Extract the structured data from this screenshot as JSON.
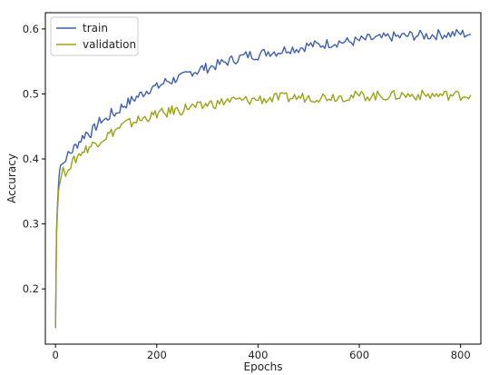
{
  "chart_data": {
    "type": "line",
    "title": "",
    "xlabel": "Epochs",
    "ylabel": "Accuracy",
    "xlim": [
      -20,
      840
    ],
    "ylim": [
      0.115,
      0.625
    ],
    "xticks": [
      0,
      200,
      400,
      600,
      800
    ],
    "yticks": [
      0.2,
      0.3,
      0.4,
      0.5,
      0.6
    ],
    "grid": false,
    "legend_position": "top-left",
    "series": [
      {
        "name": "train",
        "color": "#3e5fb4",
        "x": [
          0,
          2,
          4,
          6,
          8,
          10,
          15,
          20,
          25,
          30,
          40,
          50,
          60,
          70,
          80,
          90,
          100,
          110,
          120,
          130,
          140,
          150,
          160,
          170,
          180,
          190,
          200,
          210,
          220,
          230,
          240,
          250,
          260,
          270,
          280,
          290,
          300,
          320,
          340,
          360,
          380,
          400,
          420,
          440,
          460,
          480,
          500,
          520,
          540,
          560,
          580,
          600,
          620,
          640,
          660,
          680,
          700,
          720,
          740,
          760,
          780,
          800,
          820
        ],
        "y": [
          0.14,
          0.29,
          0.33,
          0.36,
          0.38,
          0.39,
          0.4,
          0.39,
          0.41,
          0.41,
          0.42,
          0.43,
          0.44,
          0.44,
          0.45,
          0.46,
          0.46,
          0.47,
          0.47,
          0.48,
          0.485,
          0.49,
          0.495,
          0.5,
          0.505,
          0.51,
          0.51,
          0.515,
          0.52,
          0.52,
          0.525,
          0.525,
          0.53,
          0.535,
          0.535,
          0.54,
          0.54,
          0.545,
          0.55,
          0.555,
          0.56,
          0.56,
          0.565,
          0.565,
          0.57,
          0.57,
          0.575,
          0.575,
          0.578,
          0.58,
          0.58,
          0.582,
          0.585,
          0.585,
          0.588,
          0.588,
          0.59,
          0.59,
          0.59,
          0.592,
          0.592,
          0.593,
          0.592
        ]
      },
      {
        "name": "validation",
        "color": "#9aa415",
        "x": [
          0,
          2,
          4,
          6,
          8,
          10,
          15,
          20,
          25,
          30,
          40,
          50,
          60,
          70,
          80,
          90,
          100,
          110,
          120,
          130,
          140,
          150,
          160,
          170,
          180,
          190,
          200,
          210,
          220,
          230,
          240,
          250,
          260,
          270,
          280,
          290,
          300,
          320,
          340,
          360,
          380,
          400,
          420,
          440,
          460,
          480,
          500,
          520,
          540,
          560,
          580,
          600,
          620,
          640,
          660,
          680,
          700,
          720,
          740,
          760,
          780,
          800,
          820
        ],
        "y": [
          0.14,
          0.28,
          0.32,
          0.35,
          0.36,
          0.37,
          0.38,
          0.38,
          0.39,
          0.39,
          0.4,
          0.41,
          0.415,
          0.42,
          0.425,
          0.43,
          0.435,
          0.44,
          0.445,
          0.45,
          0.455,
          0.455,
          0.46,
          0.46,
          0.465,
          0.465,
          0.47,
          0.47,
          0.47,
          0.475,
          0.475,
          0.475,
          0.48,
          0.48,
          0.48,
          0.48,
          0.485,
          0.485,
          0.49,
          0.49,
          0.49,
          0.492,
          0.492,
          0.494,
          0.494,
          0.495,
          0.495,
          0.495,
          0.496,
          0.496,
          0.496,
          0.497,
          0.497,
          0.497,
          0.497,
          0.498,
          0.498,
          0.498,
          0.498,
          0.498,
          0.498,
          0.498,
          0.498
        ]
      }
    ]
  }
}
